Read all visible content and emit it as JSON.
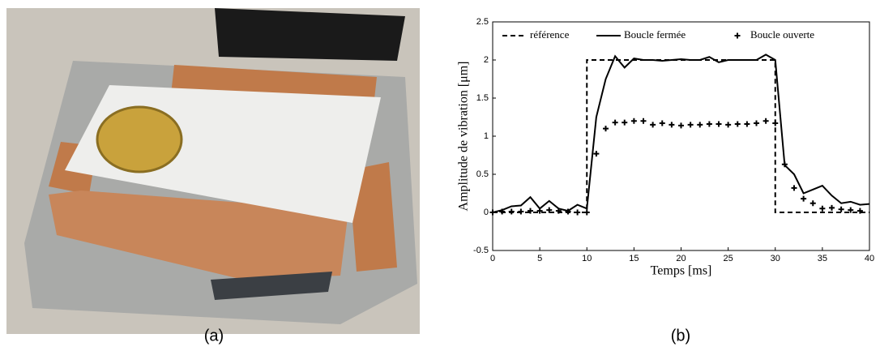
{
  "captions": [
    "(a)",
    "(b)"
  ],
  "chart_data": {
    "type": "line",
    "xlabel": "Temps [ms]",
    "ylabel": "Amplitude de vibration [μm]",
    "xlim": [
      0,
      40
    ],
    "xticks": [
      0,
      5,
      10,
      15,
      20,
      25,
      30,
      35,
      40
    ],
    "ylim": [
      -0.5,
      2.5
    ],
    "yticks": [
      -0.5,
      0,
      0.5,
      1,
      1.5,
      2,
      2.5
    ],
    "grid": false,
    "legend": "top",
    "series": [
      {
        "name": "référence",
        "color": "#000000",
        "style": "dashed",
        "x": [
          0,
          10,
          10,
          30,
          30,
          40
        ],
        "values": [
          0,
          0,
          2,
          2,
          0,
          0
        ]
      },
      {
        "name": "Boucle fermée",
        "color": "#000000",
        "style": "solid",
        "x": [
          0,
          1,
          2,
          3,
          4,
          5,
          6,
          7,
          8,
          9,
          10,
          11,
          12,
          13,
          14,
          15,
          16,
          17,
          18,
          19,
          20,
          21,
          22,
          23,
          24,
          25,
          26,
          27,
          28,
          29,
          30,
          31,
          32,
          33,
          34,
          35,
          36,
          37,
          38,
          39,
          40
        ],
        "values": [
          0,
          0.03,
          0.08,
          0.09,
          0.2,
          0.05,
          0.15,
          0.05,
          0.02,
          0.1,
          0.05,
          1.25,
          1.75,
          2.05,
          1.9,
          2.02,
          2,
          2,
          1.99,
          2,
          2.01,
          2,
          2,
          2.04,
          1.97,
          2,
          2,
          2,
          2,
          2.07,
          2,
          0.62,
          0.5,
          0.25,
          0.3,
          0.35,
          0.22,
          0.12,
          0.14,
          0.1,
          0.11
        ]
      },
      {
        "name": "Boucle ouverte",
        "color": "#000000",
        "style": "plus",
        "x": [
          0,
          1,
          2,
          3,
          4,
          5,
          6,
          7,
          8,
          9,
          10,
          11,
          12,
          13,
          14,
          15,
          16,
          17,
          18,
          19,
          20,
          21,
          22,
          23,
          24,
          25,
          26,
          27,
          28,
          29,
          30,
          31,
          32,
          33,
          34,
          35,
          36,
          37,
          38,
          39
        ],
        "values": [
          0,
          0.01,
          0.01,
          0.01,
          0.02,
          0.02,
          0.03,
          0.02,
          0.01,
          0,
          0,
          0.77,
          1.1,
          1.18,
          1.18,
          1.2,
          1.2,
          1.15,
          1.17,
          1.15,
          1.14,
          1.15,
          1.15,
          1.16,
          1.16,
          1.15,
          1.16,
          1.16,
          1.17,
          1.2,
          1.17,
          0.63,
          0.32,
          0.18,
          0.12,
          0.05,
          0.06,
          0.04,
          0.03,
          0.02
        ]
      }
    ]
  }
}
